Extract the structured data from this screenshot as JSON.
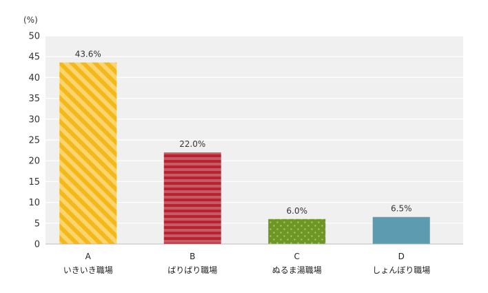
{
  "chart_data": {
    "type": "bar",
    "unit_label": "(%)",
    "categories": [
      {
        "letter": "A",
        "name": "いきいき職場"
      },
      {
        "letter": "B",
        "name": "ばりばり職場"
      },
      {
        "letter": "C",
        "name": "ぬるま湯職場"
      },
      {
        "letter": "D",
        "name": "しょんぼり職場"
      }
    ],
    "values": [
      43.6,
      22.0,
      6.0,
      6.5
    ],
    "value_labels": [
      "43.6%",
      "22.0%",
      "6.0%",
      "6.5%"
    ],
    "ylim": [
      0,
      50
    ],
    "yticks": [
      0,
      5,
      10,
      15,
      20,
      25,
      30,
      35,
      40,
      45,
      50
    ],
    "grid": true,
    "legend": "none",
    "colors": {
      "plot_background": "#f0f0f0",
      "gridline": "#ffffff",
      "bar_a_base": "#f4b81a",
      "bar_a_stripe": "#f9d56e",
      "bar_b_base": "#b52430",
      "bar_b_stripe": "#c95a63",
      "bar_c_base": "#6e9624",
      "bar_c_dot": "#a9c770",
      "bar_d": "#5d9bb0"
    },
    "patterns": [
      "diagonal-stripes",
      "horizontal-stripes",
      "dots",
      "solid"
    ]
  }
}
